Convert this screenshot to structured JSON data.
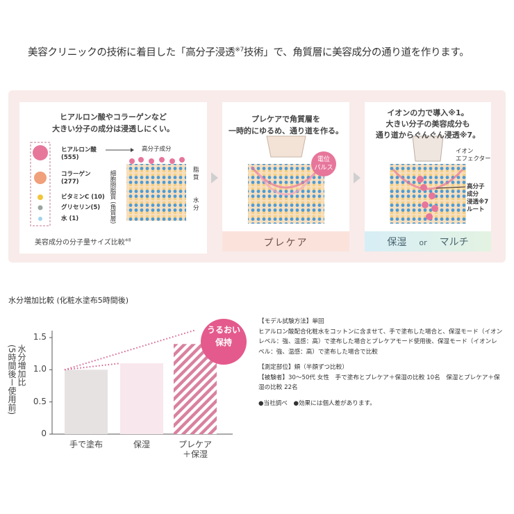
{
  "headline": {
    "before": "美容クリニックの技術に着目した「高分子浸透",
    "note": "※7",
    "after": "技術」で、角質層に美容成分の通り道を作ります。"
  },
  "cards": [
    {
      "title": "ヒアルロン酸やコラーゲンなど\n大きい分子の成分は浸透しにくい。",
      "molecules": [
        "ヒアルロン酸\n(555)",
        "コラーゲン\n(277)",
        "ビタミンC (10)",
        "グリセリン(5)",
        "水 (1)"
      ],
      "labels": [
        "高分子成分",
        "脂質",
        "細胞間脂質\n(角質層)",
        "水分"
      ],
      "caption": "美容成分の分子量サイズ比較",
      "caption_note": "※8"
    },
    {
      "title": "プレケアで角質層を\n一時的にゆるめ、通り道を作る。",
      "badge": "電位\nパルス",
      "footer": "プレケア"
    },
    {
      "title": "イオンの力で導入※1。\n大きい分子の美容成分も\n通り道からぐんぐん浸透※7。",
      "labels": [
        "イオン\nエフェクター",
        "高分子\n成分\n浸透※7\nルート"
      ],
      "footer": [
        "保湿",
        "or",
        "マルチ"
      ]
    }
  ],
  "chart_data": {
    "type": "bar",
    "title": "水分増加比較 (化粧水塗布5時間後)",
    "ylabel": "水分増加比\n(5時間後ー使用前)",
    "categories": [
      "手で塗布",
      "保湿",
      "プレケア\n＋保湿"
    ],
    "values": [
      1.0,
      1.1,
      1.4
    ],
    "colors": [
      "#e6e2e2",
      "#f8e7ed",
      "#d9819f"
    ],
    "ylim": [
      0,
      1.5
    ],
    "yticks": [
      0,
      0.5,
      {
        "value": 1,
        "label": "1.0"
      },
      1.5
    ],
    "badge": "うるおい\n保持",
    "badge_color": "#e45a8c"
  },
  "notes": [
    "【モデル試験方法】単回",
    "ヒアルロン酸配合化粧水をコットンに含ませて、手で塗布した場合と、保湿モード（イオンレベル：強、温感：高）で塗布した場合とプレケアモード使用後、保湿モード（イオンレベル：強、温感：高）で塗布した場合で比較",
    "【測定部位】頬（半顔ずつ比較）",
    "【被験者】30〜50代 女性　手で塗布とプレケア＋保湿の比較 10名　保湿とプレケア＋保湿の比較 22名",
    "●当社調べ　●効果には個人差があります。"
  ]
}
